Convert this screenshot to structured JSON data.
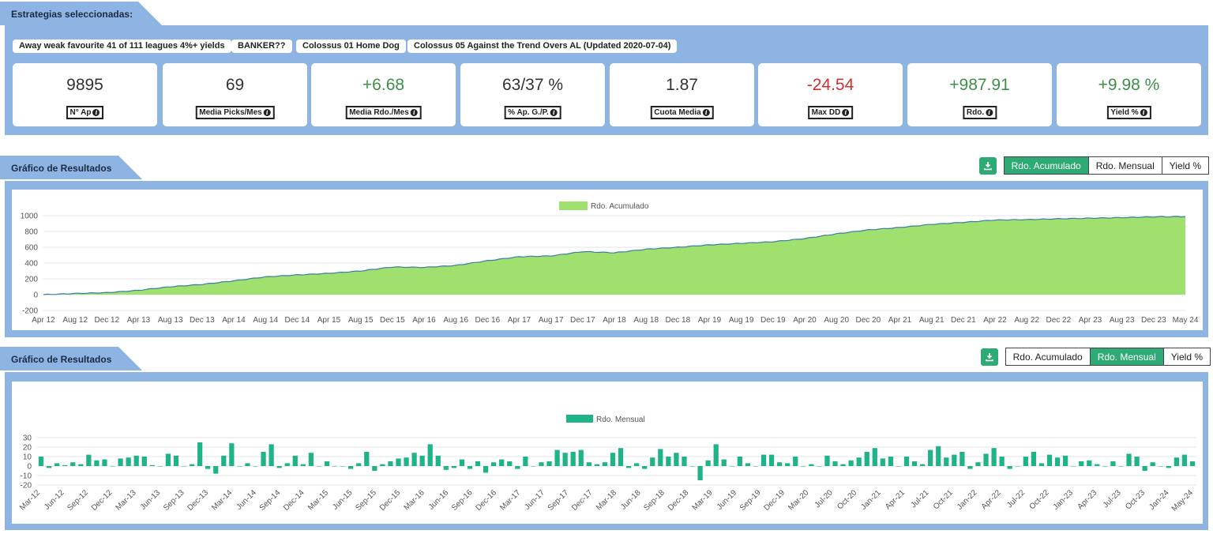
{
  "header": {
    "title": "Estrategias seleccionadas:"
  },
  "strategies": [
    "Away weak favourite 41 of 111 leagues 4%+ yields",
    "BANKER??",
    "Colossus 01 Home Dog",
    "Colossus 05 Against the Trend Overs AL (Updated 2020-07-04)"
  ],
  "kpis": [
    {
      "value": "9895",
      "label": "N° Ap",
      "color": "dark"
    },
    {
      "value": "69",
      "label": "Media Picks/Mes",
      "color": "dark"
    },
    {
      "value": "+6.68",
      "label": "Media Rdo./Mes",
      "color": "green"
    },
    {
      "value": "63/37 %",
      "label": "% Ap. G./P.",
      "color": "dark"
    },
    {
      "value": "1.87",
      "label": "Cuota Media",
      "color": "dark"
    },
    {
      "value": "-24.54",
      "label": "Max DD",
      "color": "red"
    },
    {
      "value": "+987.91",
      "label": "Rdo.",
      "color": "green"
    },
    {
      "value": "+9.98 %",
      "label": "Yield %",
      "color": "green"
    }
  ],
  "colors": {
    "panel": "#8db4e2",
    "accent": "#2eaa75",
    "area_fill": "#9fe06f",
    "area_line": "#3a7fa0",
    "bar": "#1fb38a"
  },
  "icons": {
    "download": "download-icon",
    "info": "info-icon"
  },
  "section1": {
    "title": "Gráfico de Resultados",
    "toggles": [
      "Rdo. Acumulado",
      "Rdo. Mensual",
      "Yield %"
    ],
    "active": 0
  },
  "section2": {
    "title": "Gráfico de Resultados",
    "toggles": [
      "Rdo. Acumulado",
      "Rdo. Mensual",
      "Yield %"
    ],
    "active": 1
  },
  "chart_data": [
    {
      "type": "area",
      "legend": "Rdo. Acumulado",
      "ylim": [
        -200,
        1000
      ],
      "yticks": [
        1000,
        800,
        600,
        400,
        200,
        0,
        -200
      ],
      "xticks": [
        "Apr 12",
        "Aug 12",
        "Dec 12",
        "Apr 13",
        "Aug 13",
        "Dec 13",
        "Apr 14",
        "Aug 14",
        "Dec 14",
        "Apr 15",
        "Aug 15",
        "Dec 15",
        "Apr 16",
        "Aug 16",
        "Dec 16",
        "Apr 17",
        "Aug 17",
        "Dec 17",
        "Apr 18",
        "Aug 18",
        "Dec 18",
        "Apr 19",
        "Aug 19",
        "Dec 19",
        "Apr 20",
        "Aug 20",
        "Dec 20",
        "Apr 21",
        "Aug 21",
        "Dec 21",
        "Apr 22",
        "Aug 22",
        "Dec 22",
        "Apr 23",
        "Aug 23",
        "Dec 23",
        "May 24"
      ],
      "values": [
        0,
        15,
        25,
        55,
        100,
        130,
        175,
        225,
        250,
        270,
        300,
        350,
        345,
        370,
        430,
        480,
        490,
        545,
        530,
        575,
        600,
        630,
        650,
        670,
        710,
        770,
        820,
        850,
        890,
        915,
        945,
        950,
        960,
        968,
        975,
        985,
        988
      ]
    },
    {
      "type": "bar",
      "legend": "Rdo. Mensual",
      "ylim": [
        -20,
        30
      ],
      "yticks": [
        30,
        20,
        10,
        0,
        -10,
        -20
      ],
      "xticks": [
        "Mar-12",
        "Jun-12",
        "Sep-12",
        "Dec-12",
        "Mar-13",
        "Jun-13",
        "Sep-13",
        "Dec-13",
        "Mar-14",
        "Jun-14",
        "Sep-14",
        "Dec-14",
        "Mar-15",
        "Jun-15",
        "Sep-15",
        "Dec-15",
        "Mar-16",
        "Jun-16",
        "Sep-16",
        "Dec-16",
        "Mar-17",
        "Jun-17",
        "Sep-17",
        "Dec-17",
        "Mar-18",
        "Jun-18",
        "Sep-18",
        "Dec-18",
        "Mar-19",
        "Jun-19",
        "Sep-19",
        "Dec-19",
        "Mar-20",
        "Jul-20",
        "Oct-20",
        "Jan-21",
        "Apr-21",
        "Jul-21",
        "Oct-21",
        "Jan-22",
        "Apr-22",
        "Jul-22",
        "Oct-22",
        "Jan-23",
        "Apr-23",
        "Jul-23",
        "Oct-23",
        "Jan-24",
        "May-24"
      ],
      "values": [
        10,
        -2,
        3,
        1,
        4,
        2,
        12,
        6,
        7,
        0,
        8,
        9,
        11,
        10,
        1,
        0,
        13,
        11,
        0,
        2,
        25,
        -3,
        -8,
        11,
        24,
        0,
        3,
        0,
        15,
        23,
        -2,
        3,
        11,
        2,
        14,
        0,
        5,
        0,
        0,
        -3,
        3,
        15,
        -5,
        2,
        5,
        8,
        9,
        14,
        11,
        23,
        11,
        -4,
        -2,
        7,
        -3,
        5,
        -7,
        4,
        7,
        5,
        -3,
        10,
        0,
        4,
        5,
        17,
        14,
        15,
        17,
        4,
        2,
        4,
        14,
        19,
        -2,
        3,
        -3,
        9,
        18,
        10,
        14,
        10,
        0,
        -15,
        6,
        23,
        7,
        0,
        10,
        3,
        0,
        12,
        12,
        4,
        3,
        10,
        0,
        2,
        0,
        11,
        5,
        2,
        6,
        9,
        15,
        19,
        8,
        10,
        0,
        10,
        5,
        2,
        17,
        21,
        9,
        12,
        15,
        -3,
        4,
        13,
        19,
        10,
        -3,
        0,
        10,
        15,
        3,
        12,
        9,
        11,
        0,
        5,
        6,
        2,
        0,
        5,
        0,
        13,
        10,
        -5,
        4,
        0,
        -2,
        9,
        12,
        5
      ]
    }
  ]
}
